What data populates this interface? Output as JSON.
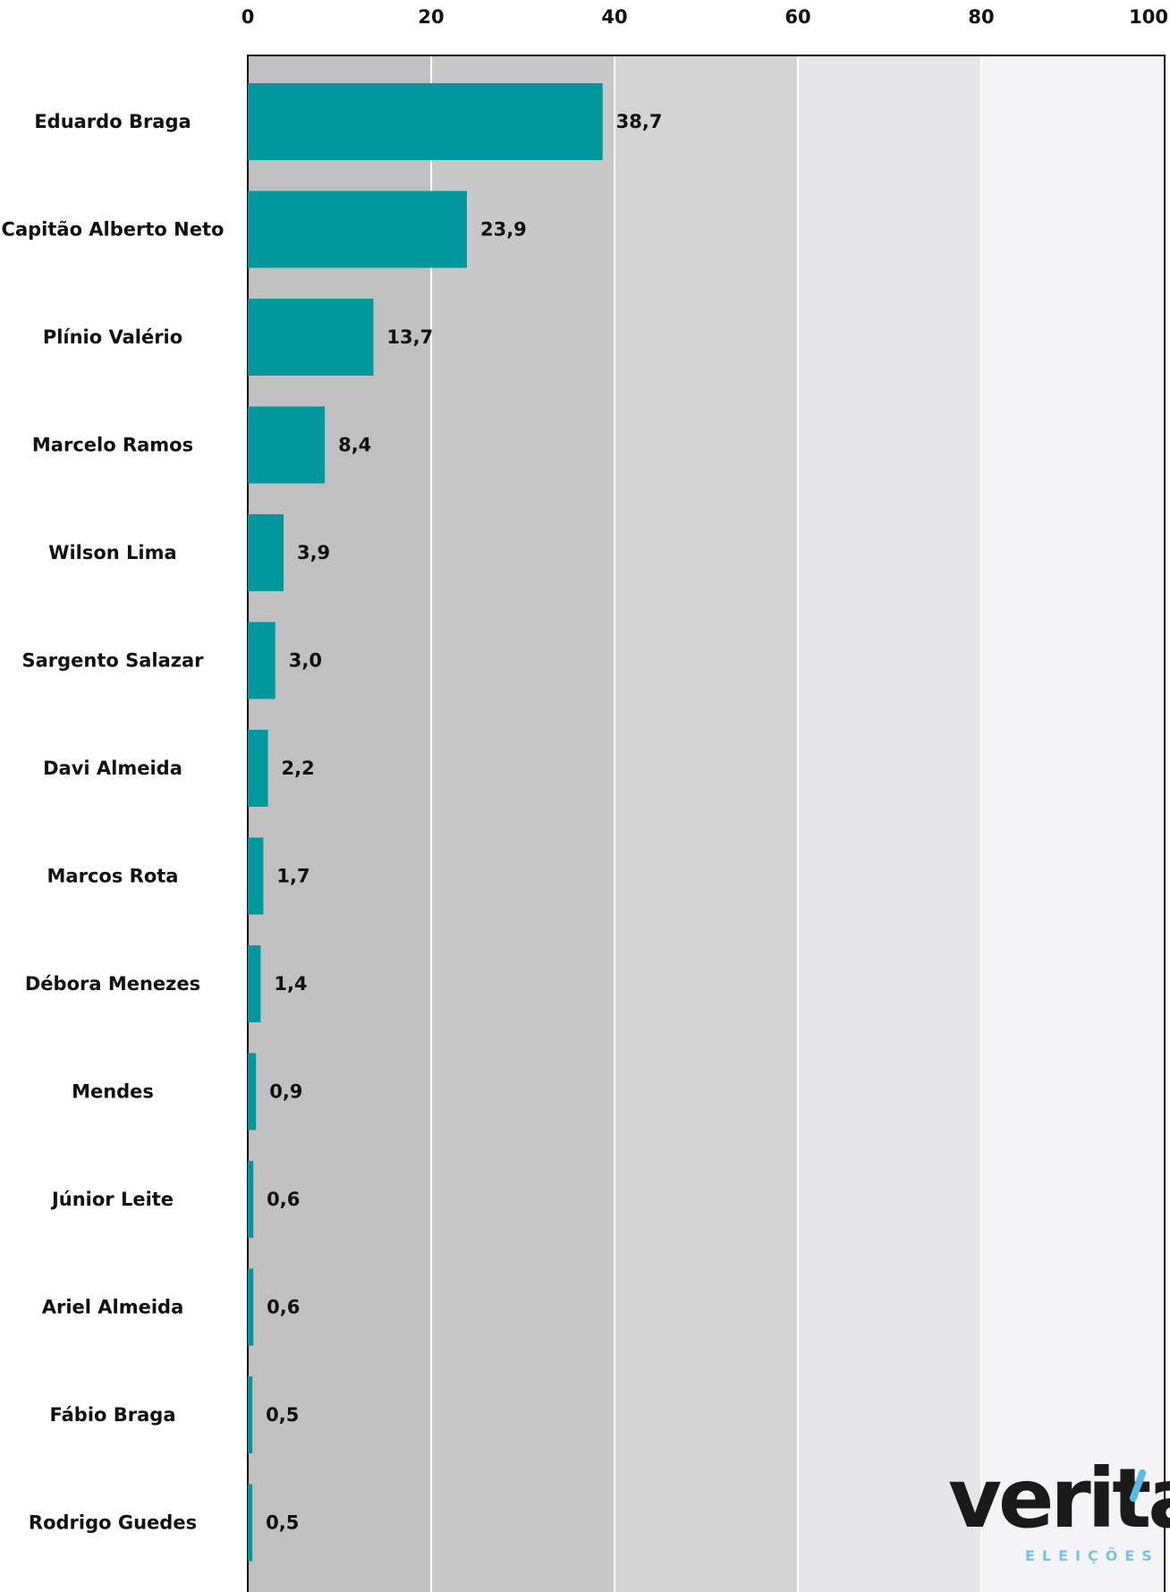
{
  "chart_data": {
    "type": "bar",
    "orientation": "horizontal",
    "categories": [
      "Eduardo Braga",
      "Capitão Alberto Neto",
      "Plínio Valério",
      "Marcelo Ramos",
      "Wilson Lima",
      "Sargento Salazar",
      "Davi Almeida",
      "Marcos Rota",
      "Débora Menezes",
      "Mendes",
      "Júnior Leite",
      "Ariel Almeida",
      "Fábio Braga",
      "Rodrigo Guedes"
    ],
    "values": [
      38.7,
      23.9,
      13.7,
      8.4,
      3.9,
      3.0,
      2.2,
      1.7,
      1.4,
      0.9,
      0.6,
      0.6,
      0.5,
      0.5
    ],
    "value_labels": [
      "38,7",
      "23,9",
      "13,7",
      "8,4",
      "3,9",
      "3,0",
      "2,2",
      "1,7",
      "1,4",
      "0,9",
      "0,6",
      "0,6",
      "0,5",
      "0,5"
    ],
    "x_ticks": [
      "0",
      "20",
      "40",
      "60",
      "80",
      "100"
    ],
    "xlim": [
      0,
      100
    ],
    "xaxis_position": "top",
    "title": "",
    "xlabel": "",
    "ylabel": "",
    "grid": true,
    "legend": "none",
    "colors": {
      "bar": "#00979d",
      "band_0_20": "#c0c0c0",
      "band_20_40": "#c8c8c8",
      "band_40_60": "#d4d4d4",
      "band_60_80": "#e6e6e8",
      "band_80_100": "#f4f4f6",
      "gridline": "#ffffff",
      "frame": "#111111"
    }
  },
  "logo": {
    "name": "verita-eleicoes-logo",
    "word": "veritá",
    "sub": "ELEIÇÕES"
  }
}
